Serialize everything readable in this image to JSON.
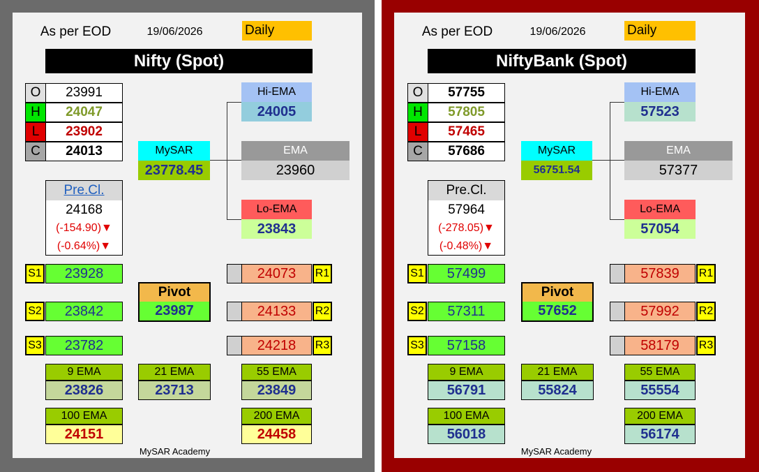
{
  "panels": [
    {
      "eod_label": "As per EOD",
      "date": "19/06/2026",
      "period": "Daily",
      "title": "Nifty (Spot)",
      "ohlc": [
        {
          "label": "O",
          "value": "23991"
        },
        {
          "label": "H",
          "value": "24047"
        },
        {
          "label": "L",
          "value": "23902"
        },
        {
          "label": "C",
          "value": "24013"
        }
      ],
      "mysar_label": "MySAR",
      "mysar_value": "23778.45",
      "hi_ema_label": "Hi-EMA",
      "hi_ema_value": "24005",
      "ema_label": "EMA",
      "ema_value": "23960",
      "lo_ema_label": "Lo-EMA",
      "lo_ema_value": "23843",
      "prev_close_label": "Pre.Cl.",
      "prev_close_value": "24168",
      "change_abs": "(-154.90)",
      "change_pct": "(-0.64%)",
      "pivot_label": "Pivot",
      "pivot_value": "23987",
      "supports": [
        {
          "label": "S1",
          "value": "23928"
        },
        {
          "label": "S2",
          "value": "23842"
        },
        {
          "label": "S3",
          "value": "23782"
        }
      ],
      "resistances": [
        {
          "label": "R1",
          "value": "24073"
        },
        {
          "label": "R2",
          "value": "24133"
        },
        {
          "label": "R3",
          "value": "24218"
        }
      ],
      "emas": [
        {
          "label": "9 EMA",
          "value": "23826"
        },
        {
          "label": "21 EMA",
          "value": "23713"
        },
        {
          "label": "55 EMA",
          "value": "23849"
        },
        {
          "label": "100 EMA",
          "value": "24151"
        },
        {
          "label": "200 EMA",
          "value": "24458"
        }
      ],
      "footer": "MySAR Academy"
    },
    {
      "eod_label": "As per EOD",
      "date": "19/06/2026",
      "period": "Daily",
      "title": "NiftyBank (Spot)",
      "ohlc": [
        {
          "label": "O",
          "value": "57755"
        },
        {
          "label": "H",
          "value": "57805"
        },
        {
          "label": "L",
          "value": "57465"
        },
        {
          "label": "C",
          "value": "57686"
        }
      ],
      "mysar_label": "MySAR",
      "mysar_value": "56751.54",
      "hi_ema_label": "Hi-EMA",
      "hi_ema_value": "57523",
      "ema_label": "EMA",
      "ema_value": "57377",
      "lo_ema_label": "Lo-EMA",
      "lo_ema_value": "57054",
      "prev_close_label": "Pre.Cl.",
      "prev_close_value": "57964",
      "change_abs": "(-278.05)",
      "change_pct": "(-0.48%)",
      "pivot_label": "Pivot",
      "pivot_value": "57652",
      "supports": [
        {
          "label": "S1",
          "value": "57499"
        },
        {
          "label": "S2",
          "value": "57311"
        },
        {
          "label": "S3",
          "value": "57158"
        }
      ],
      "resistances": [
        {
          "label": "R1",
          "value": "57839"
        },
        {
          "label": "R2",
          "value": "57992"
        },
        {
          "label": "R3",
          "value": "58179"
        }
      ],
      "emas": [
        {
          "label": "9 EMA",
          "value": "56791"
        },
        {
          "label": "21 EMA",
          "value": "55824"
        },
        {
          "label": "55 EMA",
          "value": "55554"
        },
        {
          "label": "100 EMA",
          "value": "56018"
        },
        {
          "label": "200 EMA",
          "value": "56174"
        }
      ],
      "footer": "MySAR Academy"
    }
  ],
  "icons": {
    "down_arrow": "▼"
  },
  "colors": {
    "daily": "#ffc000",
    "mysar": "#00ffff",
    "hi_ema": "#a4c2f4",
    "lo_ema": "#ff5b5b",
    "support": "#66ff33",
    "resistance": "#f8b38a",
    "sr_label": "#ffff00",
    "ema_label": "#99cc00",
    "pivot_label": "#f2b84b",
    "left_frame": "#6b6b6b",
    "right_frame": "#990000"
  }
}
